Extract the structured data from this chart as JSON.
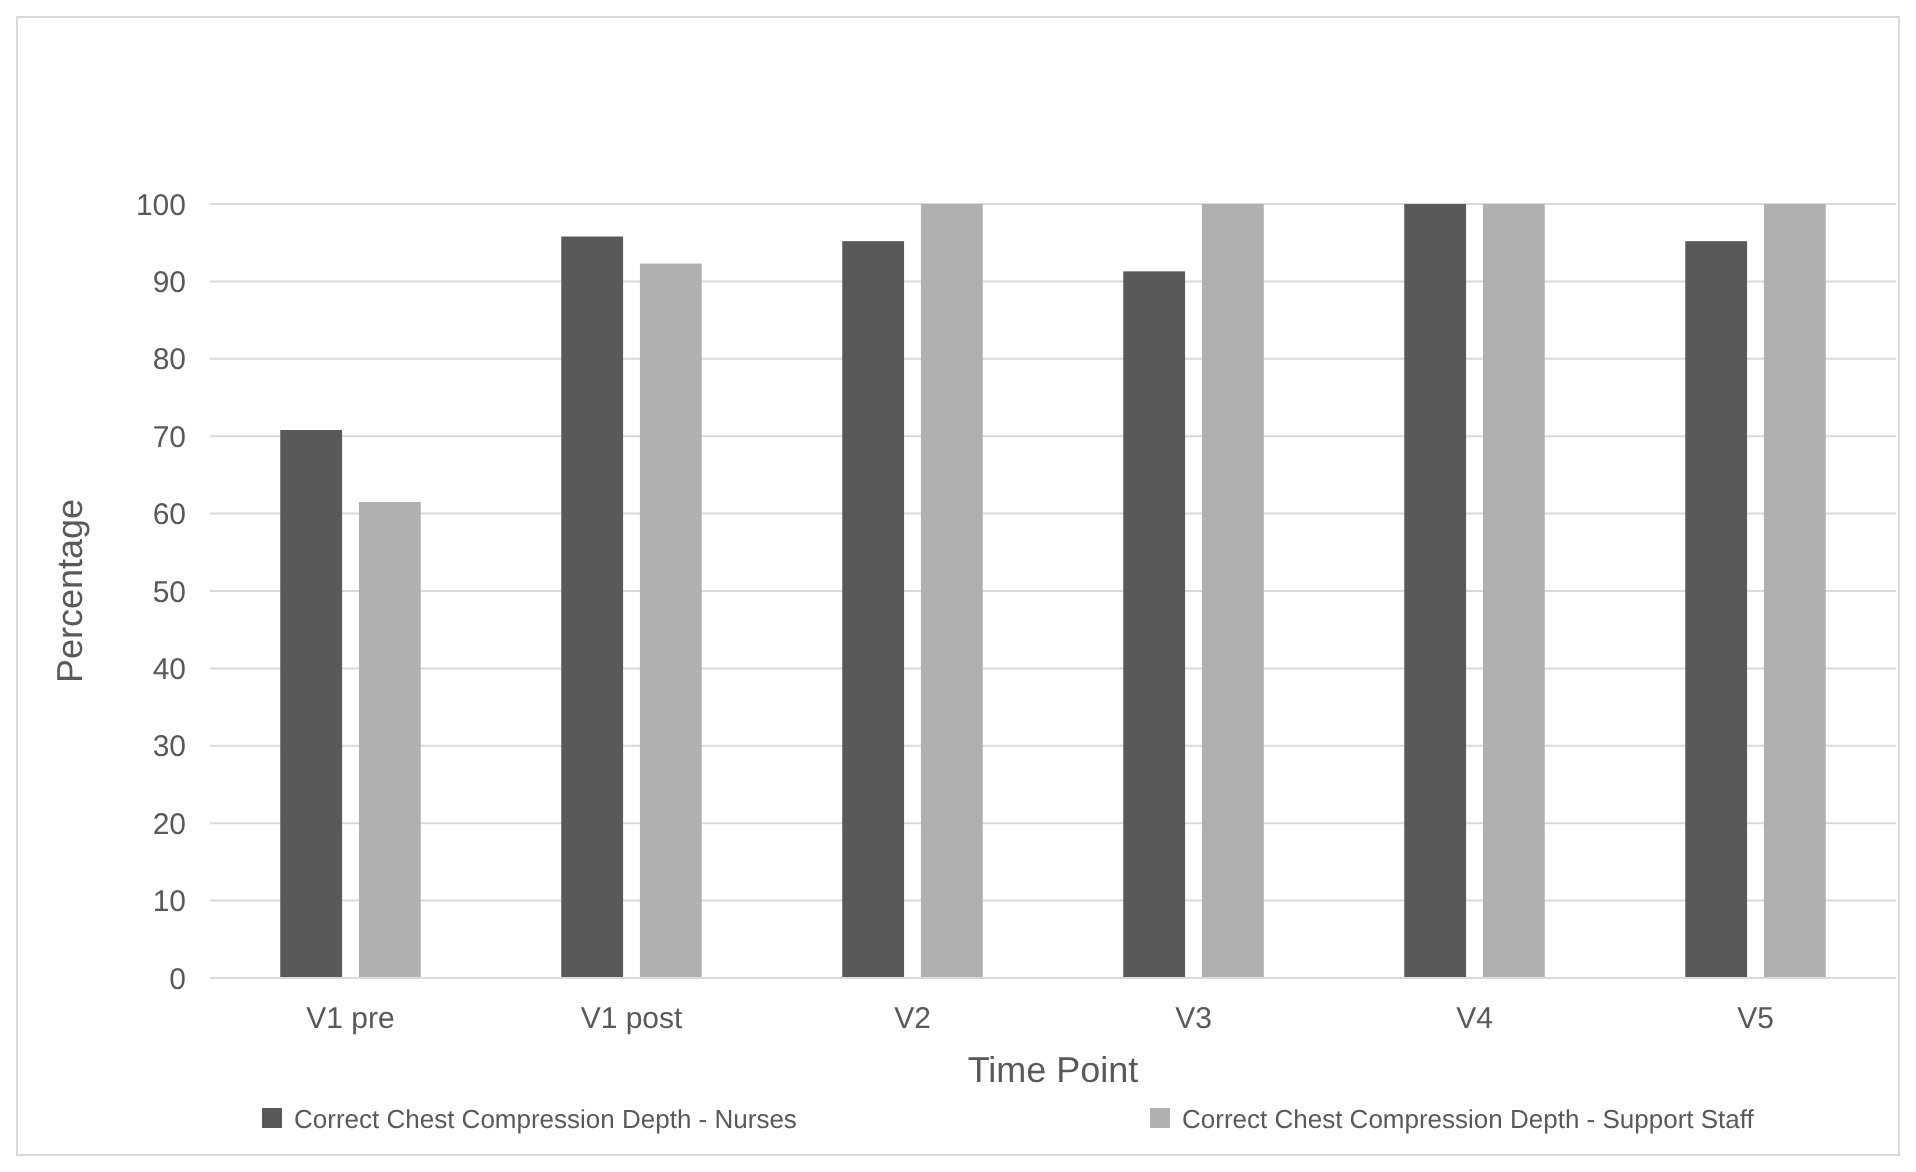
{
  "chart_data": {
    "type": "bar",
    "xlabel": "Time Point",
    "ylabel": "Percentage",
    "categories": [
      "V1 pre",
      "V1 post",
      "V2",
      "V3",
      "V4",
      "V5"
    ],
    "series": [
      {
        "name": "Correct Chest Compression Depth - Nurses",
        "color": "#595959",
        "values": [
          70.8,
          95.8,
          95.2,
          91.3,
          100,
          95.2
        ]
      },
      {
        "name": "Correct Chest Compression Depth - Support Staff",
        "color": "#b0b0b0",
        "values": [
          61.5,
          92.3,
          100,
          100,
          100,
          100
        ]
      }
    ],
    "ylim": [
      0,
      100
    ],
    "yticks": [
      0,
      10,
      20,
      30,
      40,
      50,
      60,
      70,
      80,
      90,
      100
    ],
    "grid": "y",
    "legend": "bottom"
  }
}
